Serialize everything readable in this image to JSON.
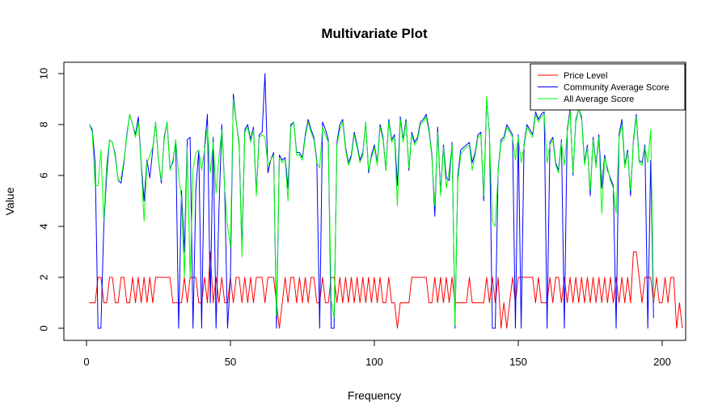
{
  "chart_data": {
    "type": "line",
    "title": "Multivariate Plot",
    "xlabel": "Frequency",
    "ylabel": "Value",
    "xlim": [
      0,
      208
    ],
    "ylim": [
      0,
      10
    ],
    "xticks": [
      0,
      50,
      100,
      150,
      200
    ],
    "yticks": [
      0,
      2,
      4,
      6,
      8,
      10
    ],
    "grid": false,
    "legend_position": "top-right",
    "series": [
      {
        "name": "Price Level",
        "color": "#ff0000",
        "x_start": 1,
        "values": [
          1,
          1,
          1,
          2,
          2,
          1,
          1,
          2,
          2,
          1,
          1,
          2,
          2,
          1,
          1,
          2,
          1,
          2,
          1,
          2,
          1,
          2,
          1,
          2,
          2,
          2,
          2,
          2,
          2,
          1,
          1,
          1,
          1,
          2,
          1,
          2,
          2,
          2,
          1,
          1,
          2,
          1,
          3,
          1,
          2,
          1,
          2,
          1,
          1,
          2,
          1,
          2,
          2,
          1,
          2,
          1,
          2,
          1,
          2,
          2,
          2,
          1,
          2,
          2,
          2,
          1,
          0,
          1,
          2,
          1,
          2,
          2,
          1,
          2,
          1,
          2,
          1,
          2,
          2,
          1,
          1,
          2,
          1,
          1,
          2,
          2,
          1,
          2,
          1,
          2,
          1,
          2,
          1,
          2,
          1,
          2,
          1,
          2,
          1,
          2,
          1,
          2,
          1,
          1,
          2,
          1,
          1,
          0,
          1,
          1,
          1,
          1,
          2,
          2,
          2,
          2,
          2,
          2,
          1,
          1,
          2,
          1,
          2,
          1,
          2,
          1,
          2,
          1,
          1,
          1,
          1,
          1,
          2,
          1,
          1,
          1,
          1,
          1,
          2,
          1,
          2,
          1,
          2,
          0,
          1,
          0,
          1,
          2,
          1,
          2,
          2,
          2,
          2,
          2,
          2,
          1,
          2,
          1,
          1,
          1,
          2,
          1,
          2,
          2,
          1,
          2,
          1,
          2,
          1,
          2,
          1,
          2,
          1,
          2,
          1,
          2,
          1,
          2,
          1,
          2,
          1,
          2,
          1,
          2,
          1,
          2,
          1,
          2,
          1,
          3,
          3,
          2,
          1,
          2,
          2,
          2,
          1,
          2,
          1,
          1,
          2,
          1,
          2,
          2,
          0,
          1,
          0
        ]
      },
      {
        "name": "Community Average Score",
        "color": "#0000ff",
        "x_start": 1,
        "values": [
          8,
          7.8,
          6.5,
          0,
          0,
          4,
          6,
          7.4,
          7.3,
          6.8,
          5.8,
          5.7,
          6.5,
          7.6,
          8.4,
          8,
          7.6,
          8.3,
          6.5,
          5,
          6.6,
          5.9,
          7,
          8.1,
          6.6,
          5.7,
          7.5,
          8.1,
          6.3,
          6.5,
          7.4,
          0,
          5.4,
          3,
          7.4,
          7.5,
          0,
          5.5,
          7,
          0,
          7.1,
          8.4,
          1,
          7.5,
          0,
          4.6,
          8,
          5.5,
          0,
          2,
          9.2,
          8.1,
          7.3,
          3.1,
          7.8,
          8,
          7.4,
          7.9,
          5.3,
          7.6,
          7.7,
          10,
          6.1,
          6.6,
          6.9,
          0,
          6.8,
          6.6,
          6.7,
          5.5,
          8,
          8.1,
          6.9,
          6.9,
          6.7,
          7.6,
          8.2,
          7.8,
          7.5,
          6.6,
          0,
          8.1,
          7.8,
          7.4,
          0,
          0,
          7.3,
          8,
          8.2,
          7.1,
          6.5,
          6.8,
          7.7,
          7.2,
          6.6,
          6.9,
          8.1,
          6.1,
          6.8,
          7.2,
          6.5,
          8,
          7.5,
          6.2,
          8.2,
          7.4,
          7.6,
          5.6,
          8.3,
          7.4,
          8.2,
          6.2,
          7.7,
          7.3,
          7.5,
          8.1,
          8.2,
          8.4,
          7.8,
          6.8,
          4.4,
          7.9,
          5.3,
          7.2,
          5.9,
          5.8,
          7.3,
          0,
          6,
          7,
          7.1,
          7.2,
          7.3,
          6.5,
          6.9,
          7.6,
          7.7,
          5,
          9,
          7.6,
          0,
          0,
          6.2,
          7.4,
          7.5,
          8,
          7.8,
          7.6,
          0,
          7.6,
          0,
          7.2,
          8,
          7.8,
          7.6,
          8.5,
          8.2,
          8.4,
          8.5,
          0,
          7.3,
          7.5,
          6.5,
          6.2,
          7.4,
          0,
          7.8,
          8.6,
          6,
          8.2,
          8.6,
          8.3,
          6.5,
          7.2,
          5.2,
          7.5,
          6.4,
          7.6,
          5.5,
          6.8,
          6.2,
          5.9,
          5.6,
          0,
          7.6,
          8.2,
          6.4,
          7,
          5.2,
          7.4,
          8.4,
          6.6,
          6.5,
          7.2,
          0,
          6.6,
          0.4
        ]
      },
      {
        "name": "All Average Score",
        "color": "#00ff00",
        "x_start": 1,
        "values": [
          8,
          7.7,
          5.6,
          5.6,
          7,
          4.2,
          6.4,
          7.4,
          7.3,
          6.7,
          5.8,
          5.9,
          6.6,
          7.5,
          8.4,
          8,
          7.5,
          8.1,
          6.4,
          4.2,
          6.5,
          6.8,
          7.1,
          8.1,
          6.6,
          5.8,
          7.4,
          8.1,
          6.2,
          6.6,
          7.4,
          6,
          5.1,
          2,
          7.1,
          2,
          6.2,
          6.9,
          7,
          6.2,
          7,
          7.9,
          6.1,
          7.3,
          5.3,
          6.7,
          7.8,
          5.5,
          4,
          3.2,
          9,
          8.1,
          7.2,
          2.8,
          7.7,
          7.9,
          7.3,
          7.8,
          5.2,
          7.5,
          7.6,
          7.5,
          6.4,
          6.6,
          6.8,
          0.5,
          6.7,
          6.5,
          6.6,
          5,
          7.9,
          8.1,
          6.8,
          6.8,
          6.6,
          7.5,
          8.1,
          7.7,
          7.4,
          6.5,
          6.3,
          7.9,
          7.6,
          7.3,
          1.1,
          0.4,
          7.2,
          7.8,
          8.1,
          7,
          6.4,
          6.7,
          7.6,
          7.1,
          6.5,
          6.8,
          8.1,
          6.2,
          6.7,
          7.1,
          6.4,
          7.9,
          7.4,
          6.2,
          8.1,
          7.3,
          7.5,
          4.8,
          8.2,
          7.3,
          8.1,
          6.3,
          7.6,
          7.2,
          7.4,
          8,
          8.1,
          8.3,
          7.7,
          6.7,
          4.8,
          7.7,
          5.2,
          7.1,
          5.5,
          6.2,
          7.2,
          0.1,
          5.8,
          6.8,
          7,
          7.1,
          7.2,
          6.2,
          6.8,
          7.5,
          7.6,
          5.2,
          9.1,
          7.5,
          4.2,
          4,
          6.1,
          7.3,
          7.4,
          7.9,
          7.7,
          7.5,
          6.6,
          7.5,
          6.5,
          7.1,
          7.9,
          7.7,
          7.5,
          8.4,
          8.1,
          8.3,
          8.4,
          6.5,
          7.2,
          7.4,
          6.4,
          6.1,
          7.3,
          6.4,
          7.7,
          8.5,
          6.1,
          8.1,
          8.6,
          8.2,
          6.4,
          7.1,
          5.4,
          7.4,
          6.3,
          7.5,
          4.5,
          6.7,
          6.3,
          5.8,
          5.5,
          4.5,
          7.5,
          8,
          6.3,
          6.9,
          5.4,
          7.3,
          8.3,
          6.5,
          6.4,
          7.1,
          6.5,
          7.8,
          1.1
        ]
      }
    ]
  }
}
